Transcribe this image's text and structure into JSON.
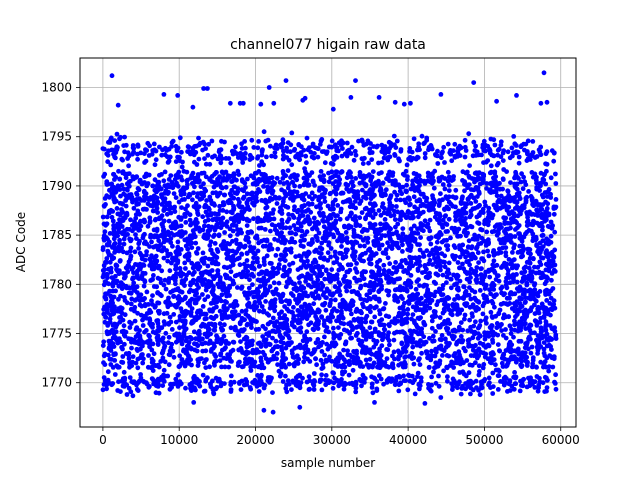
{
  "chart_data": {
    "type": "scatter",
    "title": "channel077 higain raw data",
    "xlabel": "sample number",
    "ylabel": "ADC Code",
    "xlim": [
      -3000,
      62000
    ],
    "ylim": [
      1765.5,
      1803
    ],
    "x_ticks": [
      0,
      10000,
      20000,
      30000,
      40000,
      50000,
      60000
    ],
    "x_tick_labels": [
      "0",
      "10000",
      "20000",
      "30000",
      "40000",
      "50000",
      "60000"
    ],
    "y_ticks": [
      1770,
      1775,
      1780,
      1785,
      1790,
      1795,
      1800
    ],
    "y_tick_labels": [
      "1770",
      "1775",
      "1780",
      "1785",
      "1790",
      "1795",
      "1800"
    ],
    "grid": true,
    "marker_color": "#0000ff",
    "series": [
      {
        "x_range": [
          0,
          59400
        ],
        "core_band": [
          1771.5,
          1791.5
        ],
        "high_outliers": [
          [
            1200,
            1801.2
          ],
          [
            8000,
            1799.3
          ],
          [
            9800,
            1799.2
          ],
          [
            13200,
            1799.9
          ],
          [
            13700,
            1799.9
          ],
          [
            16700,
            1798.4
          ],
          [
            18000,
            1798.4
          ],
          [
            18400,
            1798.4
          ],
          [
            20700,
            1798.3
          ],
          [
            21800,
            1800.0
          ],
          [
            22400,
            1798.4
          ],
          [
            24000,
            1800.7
          ],
          [
            26200,
            1798.7
          ],
          [
            26500,
            1798.9
          ],
          [
            32500,
            1799.0
          ],
          [
            33100,
            1800.7
          ],
          [
            36200,
            1799.0
          ],
          [
            38300,
            1798.5
          ],
          [
            39500,
            1798.3
          ],
          [
            40300,
            1798.4
          ],
          [
            44300,
            1799.3
          ],
          [
            48600,
            1800.5
          ],
          [
            51600,
            1798.6
          ],
          [
            54200,
            1799.2
          ],
          [
            57400,
            1798.4
          ],
          [
            57800,
            1801.5
          ],
          [
            58200,
            1798.5
          ],
          [
            2000,
            1798.2
          ],
          [
            11800,
            1798.0
          ],
          [
            30200,
            1797.8
          ]
        ],
        "low_outliers": [
          [
            11400,
            1769.8
          ],
          [
            11600,
            1769.2
          ],
          [
            11900,
            1768.0
          ],
          [
            12400,
            1770.3
          ],
          [
            13500,
            1770.3
          ],
          [
            16800,
            1769.3
          ],
          [
            18100,
            1769.3
          ],
          [
            21100,
            1767.2
          ],
          [
            22300,
            1767.0
          ],
          [
            24700,
            1769.3
          ],
          [
            25800,
            1767.5
          ],
          [
            29200,
            1769.8
          ],
          [
            32800,
            1769.8
          ],
          [
            35600,
            1768.0
          ],
          [
            35900,
            1769.2
          ],
          [
            38800,
            1769.8
          ],
          [
            41400,
            1769.8
          ],
          [
            42200,
            1767.9
          ],
          [
            45800,
            1769.3
          ],
          [
            50800,
            1769.5
          ],
          [
            54100,
            1769.9
          ],
          [
            57900,
            1769.1
          ],
          [
            58200,
            1769.5
          ],
          [
            4000,
            1770.0
          ],
          [
            7000,
            1769.7
          ]
        ]
      }
    ]
  }
}
